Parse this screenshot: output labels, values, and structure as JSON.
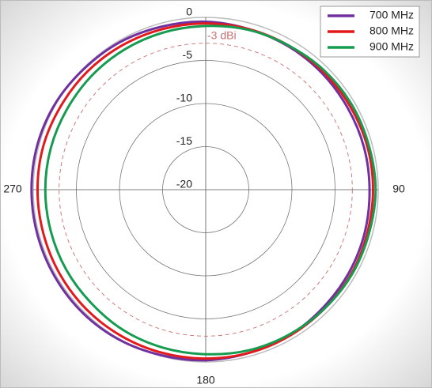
{
  "chart_data": {
    "type": "polar",
    "theta": [
      0,
      15,
      30,
      45,
      60,
      75,
      90,
      105,
      120,
      135,
      150,
      165,
      180,
      195,
      210,
      225,
      240,
      255,
      270,
      285,
      300,
      315,
      330,
      345
    ],
    "series": [
      {
        "name": "700 MHz",
        "color": "#7030a0",
        "values": [
          -0.5,
          -0.7,
          -0.8,
          -0.9,
          -1.0,
          -1.0,
          -1.0,
          -0.9,
          -0.8,
          -0.7,
          -0.5,
          -0.4,
          -0.2,
          -0.1,
          0.1,
          0.2,
          0.2,
          0.2,
          0.2,
          0.2,
          0.1,
          -0.1,
          -0.2,
          -0.4
        ]
      },
      {
        "name": "800 MHz",
        "color": "#e31a1c",
        "values": [
          -0.7,
          -0.7,
          -0.7,
          -0.7,
          -0.67,
          -0.6,
          -0.6,
          -0.6,
          -0.5,
          -0.5,
          -0.45,
          -0.4,
          -0.4,
          -0.4,
          -0.4,
          -0.4,
          -0.45,
          -0.5,
          -0.5,
          -0.5,
          -0.6,
          -0.6,
          -0.65,
          -0.7
        ]
      },
      {
        "name": "900 MHz",
        "color": "#169c50",
        "values": [
          -1.0,
          -0.8,
          -0.7,
          -0.5,
          -0.4,
          -0.4,
          -0.3,
          -0.4,
          -0.4,
          -0.5,
          -0.6,
          -0.7,
          -0.9,
          -1.0,
          -1.1,
          -1.3,
          -1.35,
          -1.4,
          -1.4,
          -1.4,
          -1.4,
          -1.3,
          -1.2,
          -1.1
        ]
      }
    ],
    "rlim": [
      -20,
      0
    ],
    "rticks": [
      0,
      -5,
      -10,
      -15,
      -20
    ],
    "angle_ticks": [
      90,
      180,
      270
    ],
    "reference": {
      "value": -3,
      "label": "-3 dBi",
      "color": "#c97070"
    },
    "grid": true,
    "legend": "upper right"
  }
}
